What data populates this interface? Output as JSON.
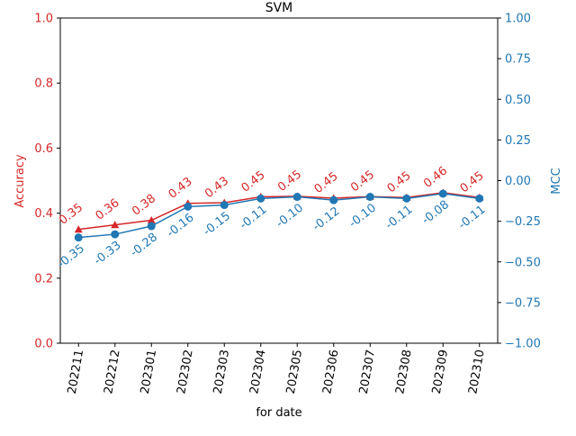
{
  "chart_data": {
    "type": "line",
    "title": "SVM",
    "xlabel": "for date",
    "categories": [
      "202211",
      "202212",
      "202301",
      "202302",
      "202303",
      "202304",
      "202305",
      "202306",
      "202307",
      "202308",
      "202309",
      "202310"
    ],
    "left_axis": {
      "label": "Accuracy",
      "ylim": [
        0,
        1
      ],
      "ticks": [
        "0.0",
        "0.2",
        "0.4",
        "0.6",
        "0.8",
        "1.0"
      ],
      "tick_values": [
        0,
        0.2,
        0.4,
        0.6,
        0.8,
        1.0
      ],
      "color": "#d62728"
    },
    "right_axis": {
      "label": "MCC",
      "ylim": [
        -1,
        1
      ],
      "ticks": [
        "−1.00",
        "−0.75",
        "−0.50",
        "−0.25",
        "0.00",
        "0.25",
        "0.50",
        "0.75",
        "1.00"
      ],
      "tick_values": [
        -1,
        -0.75,
        -0.5,
        -0.25,
        0,
        0.25,
        0.5,
        0.75,
        1.0
      ],
      "color": "#1f77b4"
    },
    "series": [
      {
        "axis": "left",
        "marker": "triangle",
        "color": "#d62728",
        "values": [
          0.35,
          0.364,
          0.378,
          0.43,
          0.432,
          0.45,
          0.452,
          0.446,
          0.451,
          0.448,
          0.463,
          0.448
        ],
        "labels": [
          "0.35",
          "0.36",
          "0.38",
          "0.43",
          "0.43",
          "0.45",
          "0.45",
          "0.45",
          "0.45",
          "0.45",
          "0.46",
          "0.45"
        ]
      },
      {
        "axis": "right",
        "marker": "circle",
        "color": "#1f77b4",
        "values": [
          -0.35,
          -0.33,
          -0.28,
          -0.16,
          -0.15,
          -0.11,
          -0.1,
          -0.12,
          -0.1,
          -0.11,
          -0.08,
          -0.11
        ],
        "labels": [
          "-0.35",
          "-0.33",
          "-0.28",
          "-0.16",
          "-0.15",
          "-0.11",
          "-0.10",
          "-0.12",
          "-0.10",
          "-0.11",
          "-0.08",
          "-0.11"
        ]
      }
    ]
  }
}
